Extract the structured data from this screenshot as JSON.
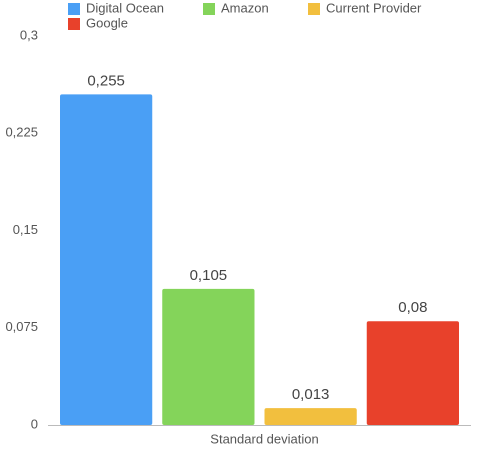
{
  "chart_data": {
    "type": "bar",
    "categories": [
      "Standard deviation"
    ],
    "series": [
      {
        "name": "Digital Ocean",
        "color": "#4a9ff5",
        "values": [
          0.255
        ],
        "value_labels": [
          "0,255"
        ]
      },
      {
        "name": "Amazon",
        "color": "#84d45a",
        "values": [
          0.105
        ],
        "value_labels": [
          "0,105"
        ]
      },
      {
        "name": "Current Provider",
        "color": "#f2bf3e",
        "values": [
          0.013
        ],
        "value_labels": [
          "0,013"
        ]
      },
      {
        "name": "Google",
        "color": "#e8412b",
        "values": [
          0.08
        ],
        "value_labels": [
          "0,08"
        ]
      }
    ],
    "ylim": [
      0,
      0.3
    ],
    "yticks": [
      0,
      {
        "value": 0.075,
        "label": "0,075"
      },
      {
        "value": 0.15,
        "label": "0,15"
      },
      {
        "value": 0.225,
        "label": "0,225"
      },
      {
        "value": 0.3,
        "label": "0,3"
      }
    ],
    "grid": false,
    "legend": "top"
  }
}
